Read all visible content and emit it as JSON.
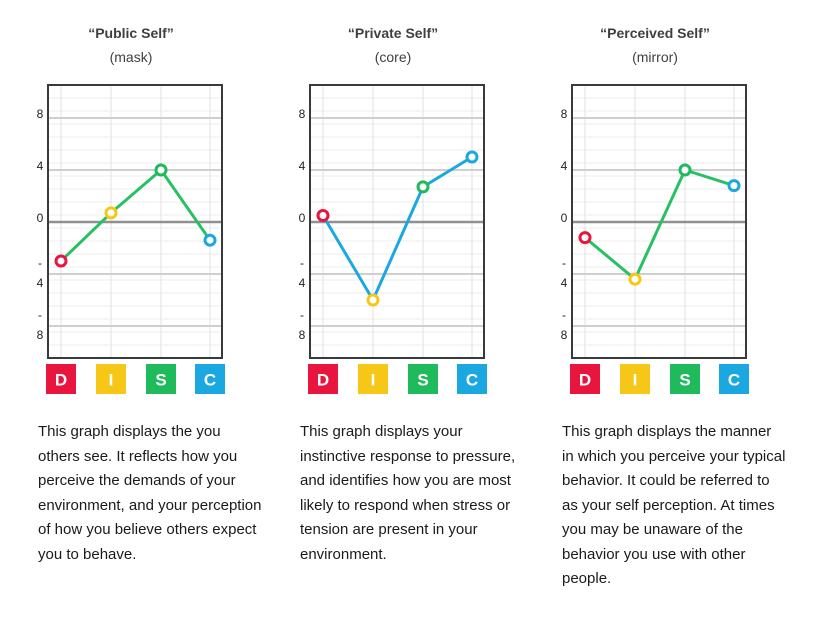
{
  "y_tick_labels": [
    {
      "top": "",
      "bottom": "8"
    },
    {
      "top": "",
      "bottom": "4"
    },
    {
      "top": "",
      "bottom": "0"
    },
    {
      "top": "-",
      "bottom": "4"
    },
    {
      "top": "-",
      "bottom": "8"
    }
  ],
  "categories": [
    "D",
    "I",
    "S",
    "C"
  ],
  "category_colors": [
    "#e8153f",
    "#f7c718",
    "#1fba5b",
    "#1ba8e0"
  ],
  "panels": [
    {
      "title": "“Public Self”",
      "subtitle": "(mask)",
      "description": "This graph displays the you others see. It reflects how you perceive the demands of your environment, and your perception of how you believe others expect you to behave.",
      "line_color": "#27c163"
    },
    {
      "title": "“Private Self”",
      "subtitle": "(core)",
      "description": "This graph displays your instinctive response to pressure, and identifies how you are most likely to respond when stress or tension are present in your environment.",
      "line_color": "#1ba8e0"
    },
    {
      "title": "“Perceived Self”",
      "subtitle": "(mirror)",
      "description": "This graph displays the manner in which you perceive your typical behavior. It could be referred to as your self perception. At times you may be unaware of the behavior you use with other people.",
      "line_color": "#27c163"
    }
  ],
  "chart_data": [
    {
      "type": "line",
      "title": "“Public Self”",
      "subtitle": "(mask)",
      "categories": [
        "D",
        "I",
        "S",
        "C"
      ],
      "values": [
        -3.0,
        0.7,
        4.0,
        -1.4
      ],
      "ylim": [
        -10,
        10
      ],
      "yticks": [
        8,
        4,
        0,
        -4,
        -8
      ],
      "grid": true
    },
    {
      "type": "line",
      "title": "“Private Self”",
      "subtitle": "(core)",
      "categories": [
        "D",
        "I",
        "S",
        "C"
      ],
      "values": [
        0.5,
        -6.0,
        2.7,
        5.0
      ],
      "ylim": [
        -10,
        10
      ],
      "yticks": [
        8,
        4,
        0,
        -4,
        -8
      ],
      "grid": true
    },
    {
      "type": "line",
      "title": "“Perceived Self”",
      "subtitle": "(mirror)",
      "categories": [
        "D",
        "I",
        "S",
        "C"
      ],
      "values": [
        -1.2,
        -4.4,
        4.0,
        2.8
      ],
      "ylim": [
        -10,
        10
      ],
      "yticks": [
        8,
        4,
        0,
        -4,
        -8
      ],
      "grid": true
    }
  ]
}
